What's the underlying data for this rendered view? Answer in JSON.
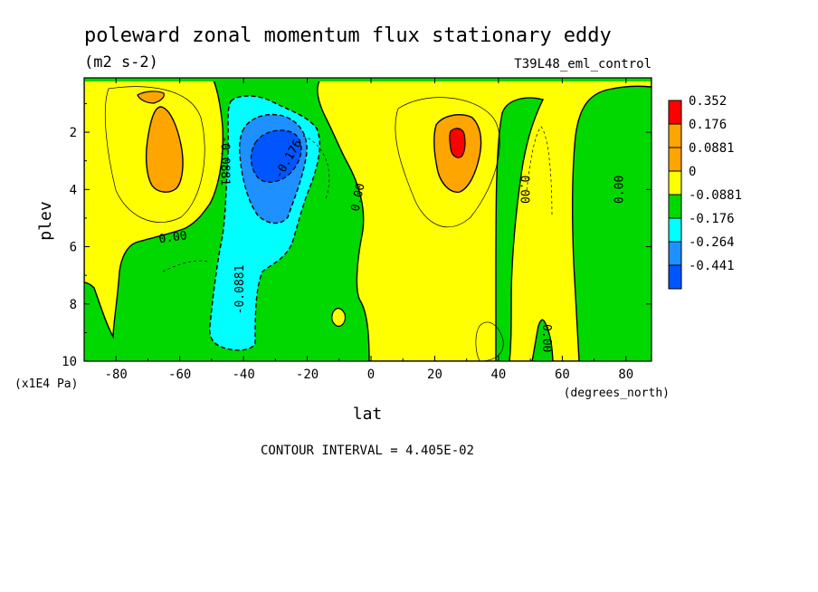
{
  "chart_data": {
    "type": "heatmap",
    "title": "poleward zonal momentum flux stationary eddy",
    "units": "(m2 s-2)",
    "dataset": "T39L48_eml_control",
    "xlabel": "lat",
    "x_units": "(degrees_north)",
    "ylabel": "plev",
    "y_units": "(x1E4 Pa)",
    "xlim": [
      -90,
      88
    ],
    "ylim": [
      10,
      0.1
    ],
    "y_reversed": true,
    "x_ticks": [
      {
        "value": -80,
        "label": "-80"
      },
      {
        "value": -60,
        "label": "-60"
      },
      {
        "value": -40,
        "label": "-40"
      },
      {
        "value": -20,
        "label": "-20"
      },
      {
        "value": 0,
        "label": "0"
      },
      {
        "value": 20,
        "label": "20"
      },
      {
        "value": 40,
        "label": "40"
      },
      {
        "value": 60,
        "label": "60"
      },
      {
        "value": 80,
        "label": "80"
      }
    ],
    "y_ticks": [
      {
        "value": 2,
        "label": "2"
      },
      {
        "value": 4,
        "label": "4"
      },
      {
        "value": 6,
        "label": "6"
      },
      {
        "value": 8,
        "label": "8"
      },
      {
        "value": 10,
        "label": "10"
      }
    ],
    "legend": {
      "placement": "right",
      "labels": [
        "0.352",
        "0.176",
        "0.0881",
        "0",
        "-0.0881",
        "-0.176",
        "-0.264",
        "-0.441"
      ],
      "colors": [
        "#ff0000",
        "#ffa500",
        "#ffa500",
        "#ffff00",
        "#00d800",
        "#00ffff",
        "#1e90ff",
        "#0055ff"
      ]
    },
    "level_colors": {
      "le_-0.264": "#0055ff",
      "-0.264_-0.176": "#1e90ff",
      "-0.176_-0.0881": "#00ffff",
      "-0.0881_0": "#00d800",
      "0_0.0881": "#ffff00",
      "0.0881_0.264": "#ffa500",
      "ge_0.264": "#ff0000"
    },
    "features": [
      {
        "lat": -63,
        "plev": 2.8,
        "value": 0.15,
        "extent_lat": 8,
        "extent_plev": 2.3
      },
      {
        "lat": -58,
        "plev": 0.7,
        "value": 0.1,
        "extent_lat": 3,
        "extent_plev": 0.3
      },
      {
        "lat": -29,
        "plev": 2.8,
        "value": -0.3,
        "extent_lat": 9,
        "extent_plev": 1.4
      },
      {
        "lat": 28,
        "plev": 2.4,
        "value": 0.25,
        "extent_lat": 8,
        "extent_plev": 1.9
      },
      {
        "lat": 28,
        "plev": 2.4,
        "value": 0.32,
        "extent_lat": 2,
        "extent_plev": 0.5
      }
    ],
    "contour_labels": [
      {
        "text": "0.00",
        "lat": -62,
        "plev": 5.8,
        "angle": -8
      },
      {
        "text": "-0.0881",
        "lat": -47,
        "plev": 3.0,
        "angle": 90
      },
      {
        "text": "-0.176",
        "lat": -25,
        "plev": 3.0,
        "angle": -60
      },
      {
        "text": "-0.0881",
        "lat": -40,
        "plev": 7.5,
        "angle": -90
      },
      {
        "text": "0.00",
        "lat": -3,
        "plev": 4.3,
        "angle": -78
      },
      {
        "text": "0.00",
        "lat": 47,
        "plev": 4.0,
        "angle": 90
      },
      {
        "text": "0.00",
        "lat": 54,
        "plev": 9.2,
        "angle": 90
      },
      {
        "text": "0.00",
        "lat": 79,
        "plev": 4.0,
        "angle": -90
      }
    ],
    "contour_interval_text": "CONTOUR INTERVAL = 4.405E-02",
    "grid": false
  }
}
